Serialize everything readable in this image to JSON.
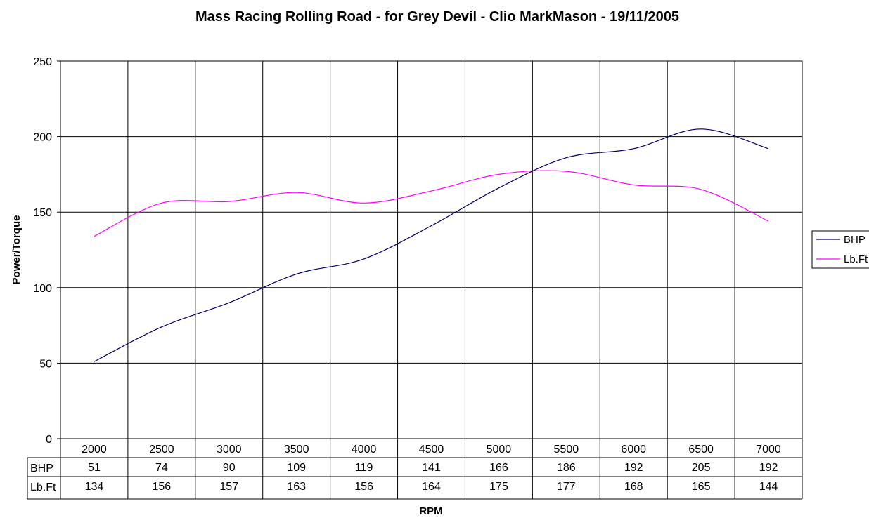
{
  "chart_data": {
    "type": "line",
    "title": "Mass Racing Rolling Road - for Grey Devil - Clio MarkMason - 19/11/2005",
    "xlabel": "RPM",
    "ylabel": "Power/Torque",
    "ylim": [
      0,
      250
    ],
    "yticks": [
      0,
      50,
      100,
      150,
      200,
      250
    ],
    "grid": true,
    "legend_position": "right",
    "categories": [
      "2000",
      "2500",
      "3000",
      "3500",
      "4000",
      "4500",
      "5000",
      "5500",
      "6000",
      "6500",
      "7000"
    ],
    "series": [
      {
        "name": "BHP",
        "color": "#000066",
        "values": [
          51,
          74,
          90,
          109,
          119,
          141,
          166,
          186,
          192,
          205,
          192
        ]
      },
      {
        "name": "Lb.Ft",
        "color": "#ff00ff",
        "values": [
          134,
          156,
          157,
          163,
          156,
          164,
          175,
          177,
          168,
          165,
          144
        ]
      }
    ],
    "data_table": true
  }
}
